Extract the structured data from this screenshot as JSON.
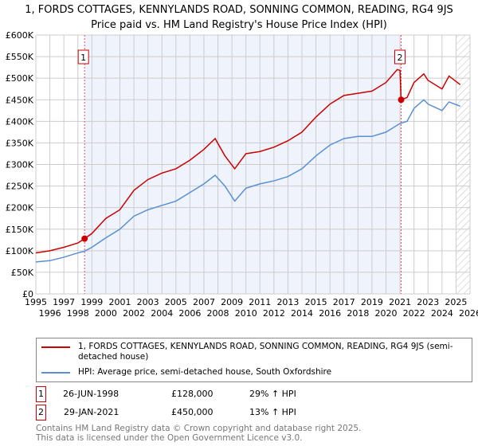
{
  "title": "1, FORDS COTTAGES, KENNYLANDS ROAD, SONNING COMMON, READING, RG4 9JS",
  "subtitle": "Price paid vs. HM Land Registry's House Price Index (HPI)",
  "chart_data": {
    "type": "line",
    "xlim": [
      1995,
      2026
    ],
    "ylim": [
      0,
      600000
    ],
    "yticks": [
      0,
      50000,
      100000,
      150000,
      200000,
      250000,
      300000,
      350000,
      400000,
      450000,
      500000,
      550000,
      600000
    ],
    "ytick_labels": [
      "£0",
      "£50K",
      "£100K",
      "£150K",
      "£200K",
      "£250K",
      "£300K",
      "£350K",
      "£400K",
      "£450K",
      "£500K",
      "£550K",
      "£600K"
    ],
    "xticks": [
      1995,
      1996,
      1997,
      1998,
      1999,
      2000,
      2001,
      2002,
      2003,
      2004,
      2005,
      2006,
      2007,
      2008,
      2009,
      2010,
      2011,
      2012,
      2013,
      2014,
      2015,
      2016,
      2017,
      2018,
      2019,
      2020,
      2021,
      2022,
      2023,
      2024,
      2025,
      2026
    ],
    "shaded_range": [
      1998.48,
      2021.08
    ],
    "hatched_from": 2025.0,
    "series": [
      {
        "name": "1, FORDS COTTAGES, KENNYLANDS ROAD, SONNING COMMON, READING, RG4 9JS (semi-detached house)",
        "color": "#cc0000",
        "x": [
          1995,
          1996,
          1997,
          1998,
          1998.48,
          1999,
          2000,
          2001,
          2002,
          2003,
          2004,
          2005,
          2006,
          2007,
          2007.8,
          2008.5,
          2009.2,
          2010,
          2011,
          2012,
          2013,
          2014,
          2015,
          2016,
          2017,
          2018,
          2019,
          2020,
          2020.8,
          2021.0,
          2021.08,
          2021.5,
          2022,
          2022.7,
          2023,
          2024,
          2024.5,
          2025.3
        ],
        "y": [
          95000,
          100000,
          108000,
          118000,
          128000,
          140000,
          175000,
          195000,
          240000,
          265000,
          280000,
          290000,
          310000,
          335000,
          360000,
          320000,
          290000,
          325000,
          330000,
          340000,
          355000,
          375000,
          410000,
          440000,
          460000,
          465000,
          470000,
          490000,
          520000,
          518000,
          450000,
          455000,
          490000,
          510000,
          495000,
          475000,
          505000,
          485000
        ]
      },
      {
        "name": "HPI: Average price, semi-detached house, South Oxfordshire",
        "color": "#5b8fd4",
        "x": [
          1995,
          1996,
          1997,
          1998,
          1998.48,
          1999,
          2000,
          2001,
          2002,
          2003,
          2004,
          2005,
          2006,
          2007,
          2007.8,
          2008.5,
          2009.2,
          2010,
          2011,
          2012,
          2013,
          2014,
          2015,
          2016,
          2017,
          2018,
          2019,
          2020,
          2021,
          2021.5,
          2022,
          2022.7,
          2023,
          2024,
          2024.5,
          2025.3
        ],
        "y": [
          74000,
          77000,
          85000,
          95000,
          99000,
          108000,
          130000,
          150000,
          180000,
          195000,
          205000,
          215000,
          235000,
          255000,
          275000,
          250000,
          215000,
          245000,
          255000,
          262000,
          272000,
          290000,
          320000,
          345000,
          360000,
          365000,
          365000,
          375000,
          395000,
          400000,
          430000,
          450000,
          440000,
          425000,
          445000,
          435000
        ]
      }
    ],
    "sales": [
      {
        "label": "1",
        "x": 1998.48,
        "y": 128000,
        "date": "26-JUN-1998",
        "price": "£128,000",
        "hpi": "29% ↑ HPI"
      },
      {
        "label": "2",
        "x": 2021.08,
        "y": 450000,
        "date": "29-JAN-2021",
        "price": "£450,000",
        "hpi": "13% ↑ HPI"
      }
    ]
  },
  "footer": [
    "Contains HM Land Registry data © Crown copyright and database right 2025.",
    "This data is licensed under the Open Government Licence v3.0."
  ]
}
